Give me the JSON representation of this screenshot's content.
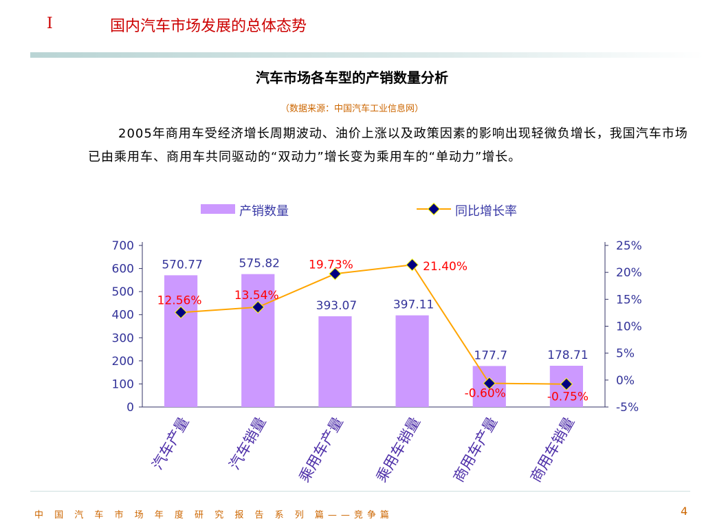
{
  "header": {
    "section_number": "I",
    "section_title": "国内汽车市场发展的总体态势"
  },
  "slide": {
    "title": "汽车市场各车型的产销数量分析",
    "source": "（数据来源：中国汽车工业信息网）",
    "paragraph": "2005年商用车受经济增长周期波动、油价上涨以及政策因素的影响出现轻微负增长，我国汽车市场已由乘用车、商用车共同驱动的“双动力”增长变为乘用车的“单动力”增长。"
  },
  "chart_data": {
    "type": "bar",
    "categories": [
      "汽车产量",
      "汽车销量",
      "乘用车产量",
      "乘用车销量",
      "商用车产量",
      "商用车销量"
    ],
    "series": [
      {
        "name": "产销数量",
        "type": "bar",
        "axis": "left",
        "values": [
          570.77,
          575.82,
          393.07,
          397.11,
          177.7,
          178.71
        ],
        "labels": [
          "570.77",
          "575.82",
          "393.07",
          "397.11",
          "177.7",
          "178.71"
        ]
      },
      {
        "name": "同比增长率",
        "type": "line",
        "axis": "right",
        "values": [
          12.56,
          13.54,
          19.73,
          21.4,
          -0.6,
          -0.75
        ],
        "labels": [
          "12.56%",
          "13.54%",
          "19.73%",
          "21.40%",
          "-0.60%",
          "-0.75%"
        ]
      }
    ],
    "y_left": {
      "ylim": [
        0,
        700
      ],
      "ticks": [
        "0",
        "100",
        "200",
        "300",
        "400",
        "500",
        "600",
        "700"
      ]
    },
    "y_right": {
      "ylim": [
        -5,
        25
      ],
      "ticks": [
        "-5%",
        "0%",
        "5%",
        "10%",
        "15%",
        "20%",
        "25%"
      ]
    },
    "legend_position": "top",
    "grid": false,
    "colors": {
      "bar": "#cc99ff",
      "line": "#ffa500",
      "marker_fill": "#000080",
      "marker_edge": "#ffff00",
      "rate_label": "#ff0000",
      "value_label": "#333399"
    }
  },
  "footer": {
    "text": "中 国 汽 车 市 场 年 度 研 究 报 告 系 列 篇——竞争篇",
    "page_number": "4"
  }
}
